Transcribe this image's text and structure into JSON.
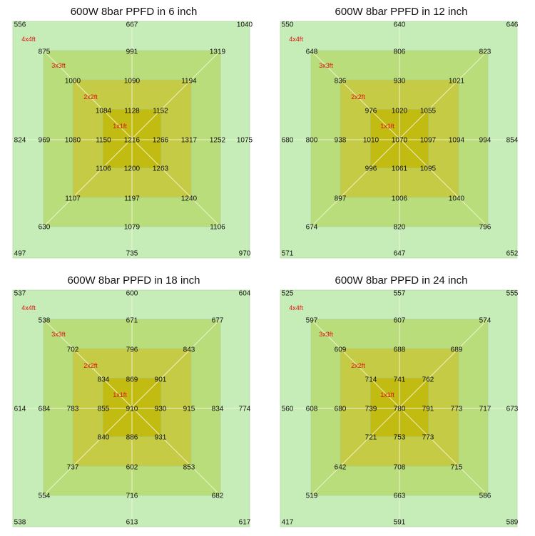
{
  "colors": {
    "outer": "#c6ecb8",
    "ring3": "#b9dd7a",
    "ring2": "#c5cb44",
    "ring1": "#c2bb12",
    "zone_label": "#e01010"
  },
  "zone_labels": [
    "4x4ft",
    "3x3ft",
    "2x2ft",
    "1x1ft"
  ],
  "chart_data": [
    {
      "type": "heatmap",
      "title": "600W 8bar PPFD in 6 inch",
      "grid": [
        [
          556,
          null,
          null,
          null,
          667,
          null,
          null,
          null,
          1040
        ],
        [
          null,
          875,
          null,
          null,
          991,
          null,
          null,
          1319,
          null
        ],
        [
          null,
          null,
          1000,
          null,
          1090,
          null,
          1194,
          null,
          null
        ],
        [
          null,
          null,
          null,
          1084,
          1128,
          1152,
          null,
          null,
          null
        ],
        [
          824,
          969,
          1080,
          1150,
          1216,
          1266,
          1317,
          1252,
          1075
        ],
        [
          null,
          null,
          null,
          1106,
          1200,
          1263,
          null,
          null,
          null
        ],
        [
          null,
          null,
          1107,
          null,
          1197,
          null,
          1240,
          null,
          null
        ],
        [
          null,
          630,
          null,
          null,
          1079,
          null,
          null,
          1106,
          null
        ],
        [
          497,
          null,
          null,
          null,
          735,
          null,
          null,
          null,
          970
        ]
      ]
    },
    {
      "type": "heatmap",
      "title": "600W 8bar PPFD in 12 inch",
      "grid": [
        [
          550,
          null,
          null,
          null,
          640,
          null,
          null,
          null,
          646
        ],
        [
          null,
          648,
          null,
          null,
          806,
          null,
          null,
          823,
          null
        ],
        [
          null,
          null,
          836,
          null,
          930,
          null,
          1021,
          null,
          null
        ],
        [
          null,
          null,
          null,
          976,
          1020,
          1055,
          null,
          null,
          null
        ],
        [
          680,
          800,
          938,
          1010,
          1070,
          1097,
          1094,
          994,
          854
        ],
        [
          null,
          null,
          null,
          996,
          1061,
          1095,
          null,
          null,
          null
        ],
        [
          null,
          null,
          897,
          null,
          1006,
          null,
          1040,
          null,
          null
        ],
        [
          null,
          674,
          null,
          null,
          820,
          null,
          null,
          796,
          null
        ],
        [
          571,
          null,
          null,
          null,
          647,
          null,
          null,
          null,
          652
        ]
      ]
    },
    {
      "type": "heatmap",
      "title": "600W 8bar PPFD in 18 inch",
      "grid": [
        [
          537,
          null,
          null,
          null,
          600,
          null,
          null,
          null,
          604
        ],
        [
          null,
          538,
          null,
          null,
          671,
          null,
          null,
          677,
          null
        ],
        [
          null,
          null,
          702,
          null,
          796,
          null,
          843,
          null,
          null
        ],
        [
          null,
          null,
          null,
          834,
          869,
          901,
          null,
          null,
          null
        ],
        [
          614,
          684,
          783,
          855,
          910,
          930,
          915,
          834,
          774
        ],
        [
          null,
          null,
          null,
          840,
          886,
          931,
          null,
          null,
          null
        ],
        [
          null,
          null,
          737,
          null,
          602,
          null,
          853,
          null,
          null
        ],
        [
          null,
          554,
          null,
          null,
          716,
          null,
          null,
          682,
          null
        ],
        [
          538,
          null,
          null,
          null,
          613,
          null,
          null,
          null,
          617
        ]
      ]
    },
    {
      "type": "heatmap",
      "title": "600W 8bar PPFD in 24 inch",
      "grid": [
        [
          525,
          null,
          null,
          null,
          557,
          null,
          null,
          null,
          555
        ],
        [
          null,
          597,
          null,
          null,
          607,
          null,
          null,
          574,
          null
        ],
        [
          null,
          null,
          609,
          null,
          688,
          null,
          689,
          null,
          null
        ],
        [
          null,
          null,
          null,
          714,
          741,
          762,
          null,
          null,
          null
        ],
        [
          560,
          608,
          680,
          739,
          780,
          791,
          773,
          717,
          673
        ],
        [
          null,
          null,
          null,
          721,
          753,
          773,
          null,
          null,
          null
        ],
        [
          null,
          null,
          642,
          null,
          708,
          null,
          715,
          null,
          null
        ],
        [
          null,
          519,
          null,
          null,
          663,
          null,
          null,
          586,
          null
        ],
        [
          417,
          null,
          null,
          null,
          591,
          null,
          null,
          null,
          589
        ]
      ]
    }
  ]
}
